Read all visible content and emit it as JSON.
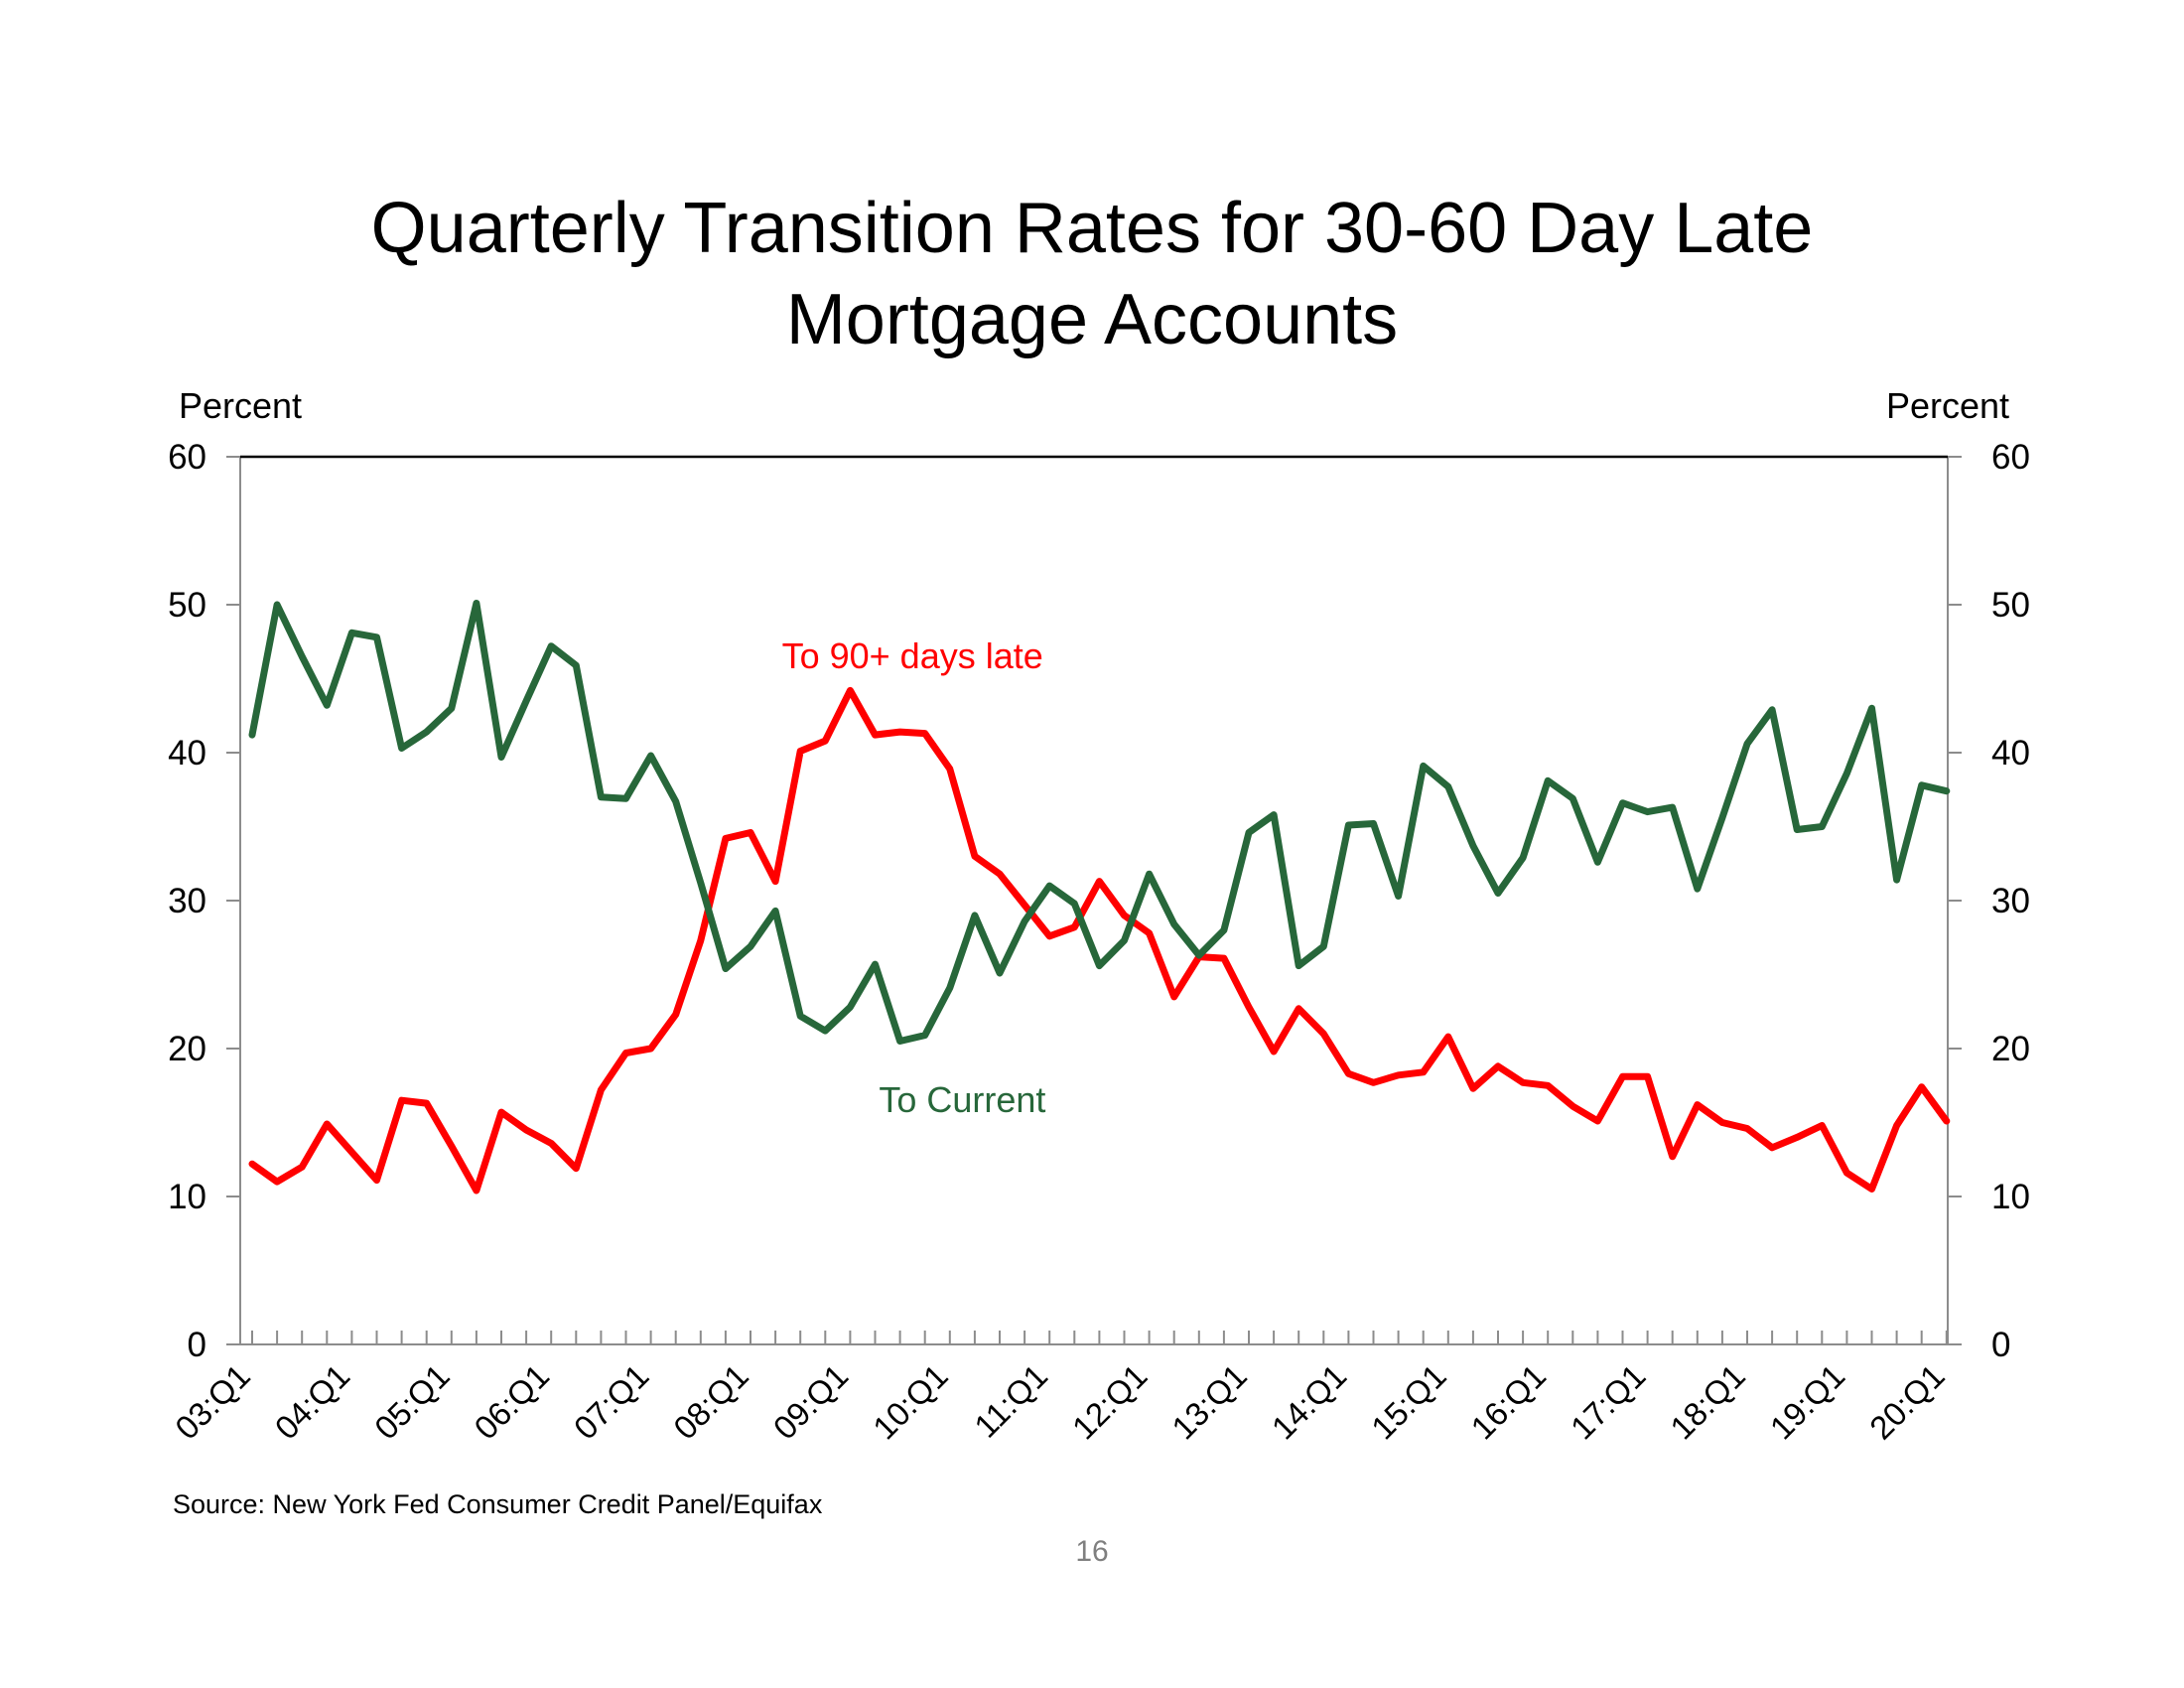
{
  "page_number": "16",
  "chart_data": {
    "type": "line",
    "title_lines": [
      "Quarterly Transition Rates for 30-60 Day Late",
      "Mortgage Accounts"
    ],
    "ylabel_left": "Percent",
    "ylabel_right": "Percent",
    "ylim": [
      0,
      60
    ],
    "yticks": [
      0,
      10,
      20,
      30,
      40,
      50,
      60
    ],
    "ytick_labels": [
      "0",
      "10",
      "20",
      "30",
      "40",
      "50",
      "60"
    ],
    "x_tick_labels": [
      "03:Q1",
      "04:Q1",
      "05:Q1",
      "06:Q1",
      "07:Q1",
      "08:Q1",
      "09:Q1",
      "10:Q1",
      "11:Q1",
      "12:Q1",
      "13:Q1",
      "14:Q1",
      "15:Q1",
      "16:Q1",
      "17:Q1",
      "18:Q1",
      "19:Q1",
      "20:Q1"
    ],
    "x_start_year": 2003,
    "x_end_year": 2020,
    "quarters_per_year": 4,
    "source": "Source: New York Fed Consumer Credit Panel/Equifax",
    "series": [
      {
        "name": "To 90+ days late",
        "color": "#ff0000",
        "label_anchor_quarter": 26.5,
        "label_anchor_value": 46.5,
        "values": [
          12.2,
          11.0,
          12.0,
          14.9,
          13.0,
          11.1,
          16.5,
          16.3,
          13.4,
          10.4,
          15.7,
          14.5,
          13.6,
          11.9,
          17.2,
          19.7,
          20.0,
          22.3,
          27.3,
          34.2,
          34.6,
          31.3,
          40.1,
          40.8,
          44.2,
          41.2,
          41.4,
          41.3,
          38.9,
          33.0,
          31.8,
          29.7,
          27.6,
          28.2,
          31.3,
          29.0,
          27.8,
          23.5,
          26.2,
          26.1,
          22.8,
          19.8,
          22.7,
          21.0,
          18.3,
          17.7,
          18.2,
          18.4,
          20.8,
          17.3,
          18.8,
          17.7,
          17.5,
          16.1,
          15.1,
          18.1,
          18.1,
          12.7,
          16.2,
          15.0,
          14.6,
          13.3,
          14.0,
          14.8,
          11.6,
          10.5,
          14.8,
          17.4,
          15.1
        ]
      },
      {
        "name": "To Current",
        "color": "#27673a",
        "label_anchor_quarter": 28.5,
        "label_anchor_value": 16.5,
        "values": [
          41.2,
          50.0,
          46.5,
          43.2,
          48.1,
          47.8,
          40.3,
          41.4,
          43.0,
          50.1,
          39.7,
          43.5,
          47.2,
          45.9,
          37.0,
          36.9,
          39.8,
          36.7,
          31.2,
          25.4,
          26.9,
          29.3,
          22.2,
          21.2,
          22.8,
          25.7,
          20.5,
          20.9,
          24.1,
          29.0,
          25.1,
          28.6,
          31.0,
          29.8,
          25.6,
          27.3,
          31.8,
          28.4,
          26.3,
          28.0,
          34.6,
          35.8,
          25.6,
          26.9,
          35.1,
          35.2,
          30.3,
          39.1,
          37.7,
          33.7,
          30.5,
          32.9,
          38.1,
          36.9,
          32.6,
          36.6,
          36.0,
          36.3,
          30.8,
          35.6,
          40.6,
          42.9,
          34.8,
          35.0,
          38.6,
          43.0,
          31.4,
          37.8,
          37.4
        ]
      }
    ]
  }
}
